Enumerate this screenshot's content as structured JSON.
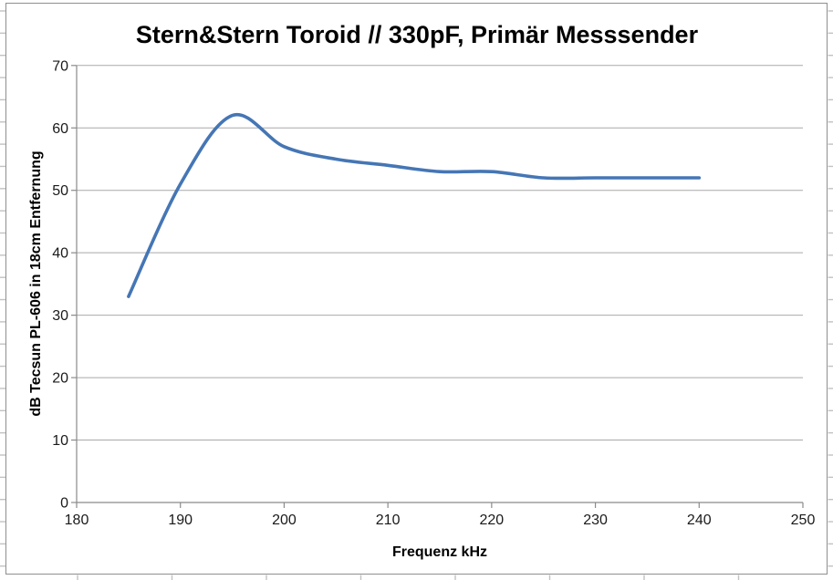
{
  "chart_data": {
    "type": "line",
    "title": "Stern&Stern Toroid // 330pF, Primär Messsender",
    "xlabel": "Frequenz kHz",
    "ylabel": "dB Tecsun PL-606 in 18cm Entfernung",
    "x": [
      185,
      190,
      195,
      200,
      205,
      210,
      215,
      220,
      225,
      230,
      235,
      240
    ],
    "series": [
      {
        "name": "dB Tecsun PL-606",
        "values": [
          33,
          51,
          62,
          57,
          55,
          54,
          53,
          53,
          52,
          52,
          52,
          52
        ]
      }
    ],
    "xlim": [
      180,
      250
    ],
    "ylim": [
      0,
      70
    ],
    "xticks": [
      180,
      190,
      200,
      210,
      220,
      230,
      240,
      250
    ],
    "yticks": [
      0,
      10,
      20,
      30,
      40,
      50,
      60,
      70
    ],
    "grid": true,
    "legend": false,
    "smooth": true,
    "line_color": "#4576b5",
    "grid_color": "#a9a9a9",
    "axis_color": "#8a8a8a",
    "border_color": "#8f8f8f",
    "worksheet_stub_color": "#c2c2c2",
    "background": "#ffffff"
  }
}
